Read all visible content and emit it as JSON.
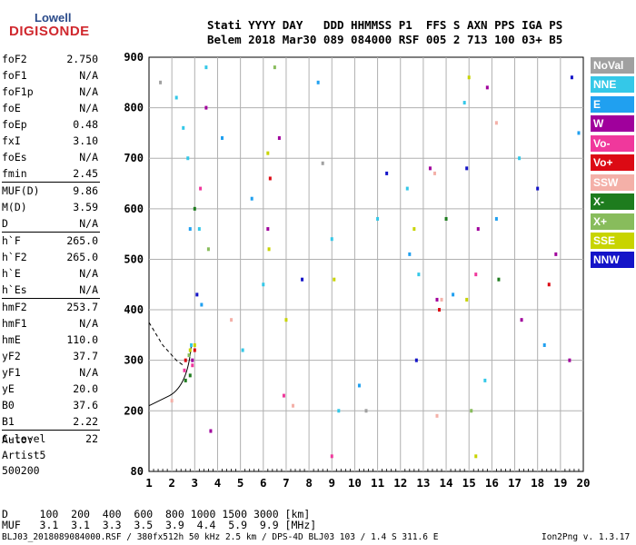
{
  "logo": {
    "line1": "Lowell",
    "line2": "DIGISONDE"
  },
  "header": {
    "line1": "Stati YYYY DAY   DDD HHMMSS P1  FFS S AXN PPS IGA PS",
    "line2": "Belem 2018 Mar30 089 084000 RSF 005 2 713 100 03+ B5"
  },
  "params": [
    {
      "k": "foF2",
      "v": "2.750"
    },
    {
      "k": "foF1",
      "v": "N/A"
    },
    {
      "k": "foF1p",
      "v": "N/A"
    },
    {
      "k": "foE",
      "v": "N/A"
    },
    {
      "k": "foEp",
      "v": "0.48"
    },
    {
      "k": "fxI",
      "v": "3.10"
    },
    {
      "k": "foEs",
      "v": "N/A"
    },
    {
      "k": "fmin",
      "v": "2.45"
    },
    {
      "sep": true
    },
    {
      "k": "MUF(D)",
      "v": "9.86"
    },
    {
      "k": "M(D)",
      "v": "3.59"
    },
    {
      "k": "D",
      "v": "N/A"
    },
    {
      "sep": true
    },
    {
      "k": "h`F",
      "v": "265.0"
    },
    {
      "k": "h`F2",
      "v": "265.0"
    },
    {
      "k": "h`E",
      "v": "N/A"
    },
    {
      "k": "h`Es",
      "v": "N/A"
    },
    {
      "sep": true
    },
    {
      "k": "hmF2",
      "v": "253.7"
    },
    {
      "k": "hmF1",
      "v": "N/A"
    },
    {
      "k": "hmE",
      "v": "110.0"
    },
    {
      "k": "yF2",
      "v": "37.7"
    },
    {
      "k": "yF1",
      "v": "N/A"
    },
    {
      "k": "yE",
      "v": "20.0"
    },
    {
      "k": "B0",
      "v": "37.6"
    },
    {
      "k": "B1",
      "v": "2.22"
    },
    {
      "sep": true
    },
    {
      "k": "C-level",
      "v": "22"
    }
  ],
  "auto": {
    "line1": "Auto:",
    "line2": "Artist5",
    "line3": "500200"
  },
  "legend": [
    {
      "label": "NoVal",
      "color": "#a0a0a0"
    },
    {
      "label": "NNE",
      "color": "#34c8e8"
    },
    {
      "label": "E",
      "color": "#20a0f0"
    },
    {
      "label": "W",
      "color": "#a0009c"
    },
    {
      "label": "Vo-",
      "color": "#f0389c"
    },
    {
      "label": "Vo+",
      "color": "#dc0a14"
    },
    {
      "label": "SSW",
      "color": "#f4b0a8"
    },
    {
      "label": "X-",
      "color": "#1e7c1e"
    },
    {
      "label": "X+",
      "color": "#88bc5c"
    },
    {
      "label": "SSE",
      "color": "#c8d400"
    },
    {
      "label": "NNW",
      "color": "#1414c8"
    }
  ],
  "bottom": {
    "d_row": "D     100  200  400  600  800 1000 1500 3000 [km]",
    "muf_row": "MUF   3.1  3.1  3.3  3.5  3.9  4.4  5.9  9.9 [MHz]"
  },
  "footer": {
    "left": "BLJ03_2018089084000.RSF / 380fx512h 50 kHz 2.5 km / DPS-4D BLJ03 103 / 1.4 S 311.6 E",
    "right": "Ion2Png v. 1.3.17"
  },
  "chart_data": {
    "type": "scatter",
    "title": "",
    "xlabel": "",
    "ylabel": "",
    "xlim": [
      1,
      20
    ],
    "ylim": [
      80,
      900
    ],
    "x_ticks": [
      1,
      2,
      3,
      4,
      5,
      6,
      7,
      8,
      9,
      10,
      11,
      12,
      13,
      14,
      15,
      16,
      17,
      18,
      19,
      20
    ],
    "y_ticks": [
      80,
      200,
      300,
      400,
      500,
      600,
      700,
      800,
      900
    ],
    "grid": true,
    "legend_position": "right",
    "series": [
      {
        "name": "NNE",
        "color": "#34c8e8",
        "points": [
          [
            2.2,
            820
          ],
          [
            2.5,
            760
          ],
          [
            2.7,
            700
          ],
          [
            2.85,
            330
          ],
          [
            3.2,
            560
          ],
          [
            3.5,
            880
          ],
          [
            5.1,
            320
          ],
          [
            6.0,
            450
          ],
          [
            9.0,
            540
          ],
          [
            9.3,
            200
          ],
          [
            11.0,
            580
          ],
          [
            12.3,
            640
          ],
          [
            12.8,
            470
          ],
          [
            14.8,
            810
          ],
          [
            15.7,
            260
          ],
          [
            17.2,
            700
          ]
        ]
      },
      {
        "name": "E",
        "color": "#20a0f0",
        "points": [
          [
            2.8,
            560
          ],
          [
            3.3,
            410
          ],
          [
            4.2,
            740
          ],
          [
            5.5,
            620
          ],
          [
            8.4,
            850
          ],
          [
            10.2,
            250
          ],
          [
            12.4,
            510
          ],
          [
            14.3,
            430
          ],
          [
            16.2,
            580
          ],
          [
            18.3,
            330
          ],
          [
            19.8,
            750
          ]
        ]
      },
      {
        "name": "W",
        "color": "#a0009c",
        "points": [
          [
            2.9,
            300
          ],
          [
            3.5,
            800
          ],
          [
            3.7,
            160
          ],
          [
            6.2,
            560
          ],
          [
            6.7,
            740
          ],
          [
            13.3,
            680
          ],
          [
            13.6,
            420
          ],
          [
            15.4,
            560
          ],
          [
            15.8,
            840
          ],
          [
            17.3,
            380
          ],
          [
            18.8,
            510
          ],
          [
            19.4,
            300
          ]
        ]
      },
      {
        "name": "Vo-",
        "color": "#f0389c",
        "points": [
          [
            2.55,
            280
          ],
          [
            2.9,
            290
          ],
          [
            3.25,
            640
          ],
          [
            6.9,
            230
          ],
          [
            9.0,
            110
          ],
          [
            15.3,
            470
          ]
        ]
      },
      {
        "name": "Vo+",
        "color": "#dc0a14",
        "points": [
          [
            2.6,
            300
          ],
          [
            3.0,
            320
          ],
          [
            6.3,
            660
          ],
          [
            13.7,
            400
          ],
          [
            18.5,
            450
          ]
        ]
      },
      {
        "name": "SSW",
        "color": "#f4b0a8",
        "points": [
          [
            2.0,
            220
          ],
          [
            4.6,
            380
          ],
          [
            7.3,
            210
          ],
          [
            13.5,
            670
          ],
          [
            13.6,
            190
          ],
          [
            13.8,
            420
          ],
          [
            16.2,
            770
          ]
        ]
      },
      {
        "name": "X-",
        "color": "#1e7c1e",
        "points": [
          [
            2.6,
            260
          ],
          [
            2.8,
            270
          ],
          [
            3.0,
            600
          ],
          [
            14.0,
            580
          ],
          [
            16.3,
            460
          ]
        ]
      },
      {
        "name": "X+",
        "color": "#88bc5c",
        "points": [
          [
            2.75,
            310
          ],
          [
            3.6,
            520
          ],
          [
            6.5,
            880
          ],
          [
            15.1,
            200
          ]
        ]
      },
      {
        "name": "SSE",
        "color": "#c8d400",
        "points": [
          [
            2.8,
            320
          ],
          [
            3.0,
            330
          ],
          [
            6.2,
            710
          ],
          [
            6.25,
            520
          ],
          [
            7.0,
            380
          ],
          [
            9.1,
            460
          ],
          [
            12.6,
            560
          ],
          [
            14.9,
            420
          ],
          [
            15.0,
            860
          ],
          [
            15.3,
            110
          ]
        ]
      },
      {
        "name": "NNW",
        "color": "#1414c8",
        "points": [
          [
            3.1,
            430
          ],
          [
            7.7,
            460
          ],
          [
            11.4,
            670
          ],
          [
            12.7,
            300
          ],
          [
            14.9,
            680
          ],
          [
            18.0,
            640
          ],
          [
            19.5,
            860
          ]
        ]
      },
      {
        "name": "NoVal",
        "color": "#a0a0a0",
        "points": [
          [
            1.5,
            850
          ],
          [
            8.6,
            690
          ],
          [
            10.5,
            200
          ]
        ]
      }
    ]
  }
}
